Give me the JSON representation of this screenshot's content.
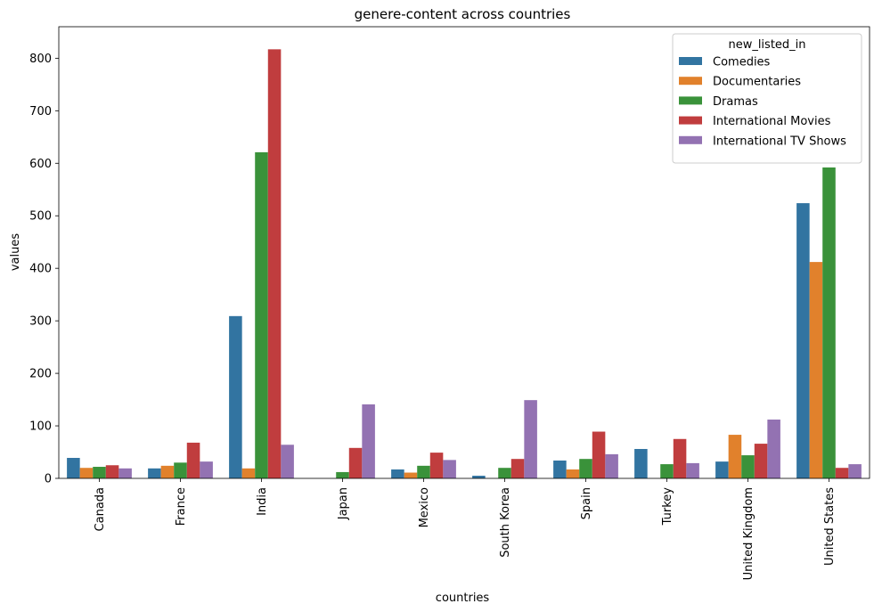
{
  "chart_data": {
    "type": "bar",
    "title": "genere-content across countries",
    "xlabel": "countries",
    "ylabel": "values",
    "ylim": [
      0,
      860
    ],
    "yticks": [
      0,
      100,
      200,
      300,
      400,
      500,
      600,
      700,
      800
    ],
    "legend": {
      "title": "new_listed_in",
      "placement": "top-right"
    },
    "categories": [
      "Canada",
      "France",
      "India",
      "Japan",
      "Mexico",
      "South Korea",
      "Spain",
      "Turkey",
      "United Kingdom",
      "United States"
    ],
    "series": [
      {
        "name": "Comedies",
        "color": "#3274a1",
        "values": [
          39,
          19,
          309,
          0,
          17,
          5,
          34,
          56,
          32,
          524
        ]
      },
      {
        "name": "Documentaries",
        "color": "#e1812c",
        "values": [
          20,
          24,
          19,
          0,
          11,
          0,
          17,
          0,
          83,
          412
        ]
      },
      {
        "name": "Dramas",
        "color": "#3a923a",
        "values": [
          22,
          30,
          621,
          12,
          24,
          20,
          37,
          27,
          44,
          592
        ]
      },
      {
        "name": "International Movies",
        "color": "#c03d3e",
        "values": [
          25,
          68,
          817,
          58,
          49,
          37,
          89,
          75,
          66,
          20
        ]
      },
      {
        "name": "International TV Shows",
        "color": "#9372b2",
        "values": [
          19,
          32,
          64,
          141,
          35,
          149,
          46,
          29,
          112,
          27
        ]
      }
    ]
  }
}
